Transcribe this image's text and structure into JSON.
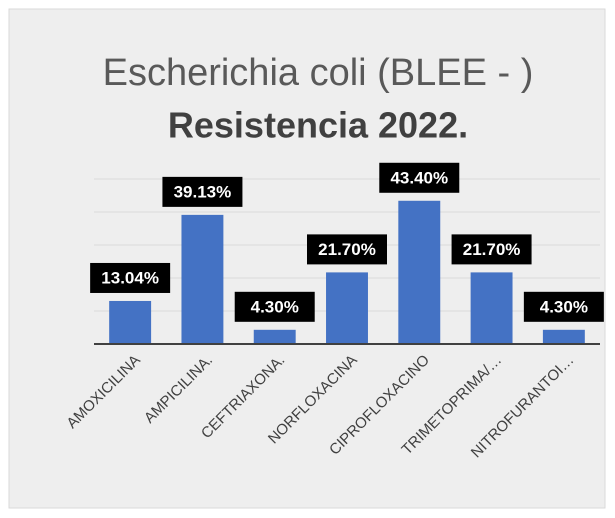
{
  "chart_data": {
    "type": "bar",
    "title": "Escherichia coli (BLEE - )",
    "subtitle": "Resistencia 2022.",
    "categories": [
      "AMOXICILINA",
      "AMPICILINA.",
      "CEFTRIAXONA.",
      "NORFLOXACINA",
      "CIPROFLOXACINO",
      "TRIMETOPRIMA/…",
      "NITROFURANTOI…"
    ],
    "values": [
      13.04,
      39.13,
      4.3,
      21.7,
      43.4,
      21.7,
      4.3
    ],
    "value_labels": [
      "13.04%",
      "39.13%",
      "4.30%",
      "21.70%",
      "43.40%",
      "21.70%",
      "4.30%"
    ],
    "color": "#4472c4",
    "ylim": [
      0,
      50
    ],
    "yticks": [
      0,
      10,
      20,
      30,
      40,
      50
    ],
    "grid": true
  }
}
